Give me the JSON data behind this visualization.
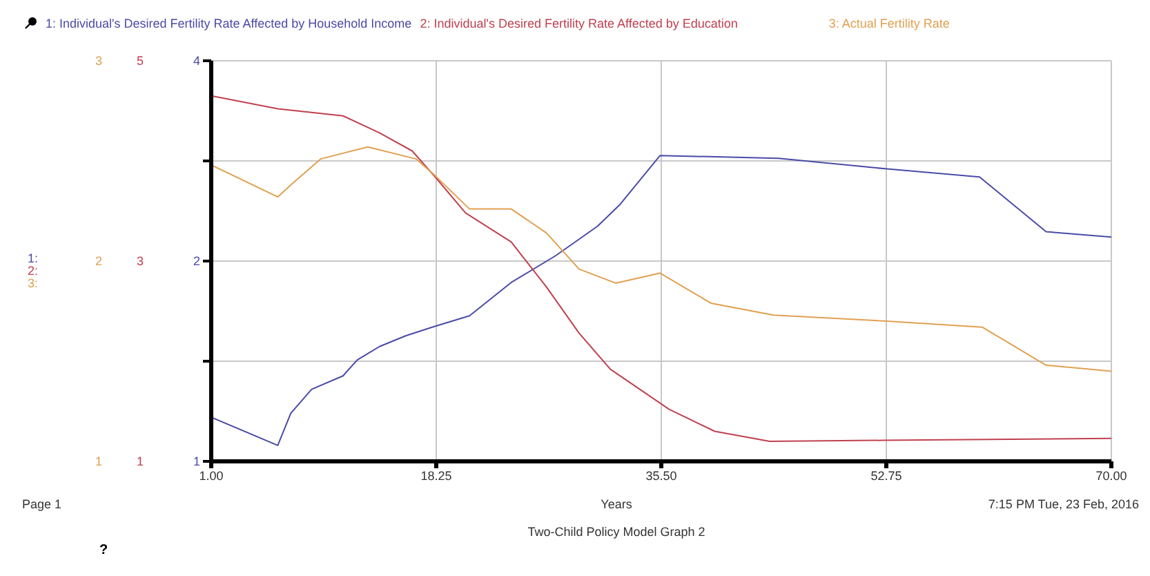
{
  "chart_data": {
    "type": "line",
    "title": "Two-Child Policy Model Graph 2",
    "xlabel": "Years",
    "annotations": [
      "Page 1",
      "7:15 PM  Tue, 23 Feb, 2016",
      "?",
      "1:",
      "2:",
      "3:"
    ],
    "xlim": [
      1,
      70
    ],
    "xticks": [
      {
        "value": 1,
        "label": "1.00"
      },
      {
        "value": 18.25,
        "label": "18.25"
      },
      {
        "value": 35.5,
        "label": "35.50"
      },
      {
        "value": 52.75,
        "label": "52.75"
      },
      {
        "value": 70,
        "label": "70.00"
      }
    ],
    "ylim": [
      1,
      4
    ],
    "yticks": [
      1,
      {
        "value": 1.75,
        "label": null
      },
      {
        "value": 2.5,
        "label": "2"
      },
      {
        "value": 3.25,
        "label": null
      },
      4
    ],
    "y2lim": [
      1,
      5
    ],
    "y2ticks": [
      1,
      3,
      5
    ],
    "y3lim": [
      1,
      3
    ],
    "y3ticks": [
      1,
      2,
      3
    ],
    "grid": true,
    "legend": "top left",
    "marker": "none",
    "line_style": "solid",
    "series": [
      {
        "name": "1: Individual's Desired Fertility Rate Affected by Household Income",
        "color": "#4a4aa8",
        "axis": "y",
        "x": [
          1,
          6.1,
          7.1,
          8.7,
          11.1,
          12.2,
          13.9,
          15.9,
          18.1,
          20.8,
          24,
          27.4,
          30.6,
          32.3,
          35.4,
          44.5,
          52.8,
          59.9,
          65,
          70
        ],
        "values": [
          1.33,
          1.12,
          1.36,
          1.54,
          1.64,
          1.76,
          1.86,
          1.94,
          2.01,
          2.09,
          2.34,
          2.54,
          2.76,
          2.92,
          3.29,
          3.27,
          3.19,
          3.13,
          2.72,
          2.68
        ]
      },
      {
        "name": "2: Individual's Desired Fertility Rate Affected by Education",
        "color": "#c0404f",
        "axis": "y2",
        "x": [
          1,
          6.1,
          11.1,
          13.9,
          16.4,
          18.1,
          20.5,
          24,
          26.7,
          29.2,
          31.6,
          36.1,
          39.6,
          43.8,
          52.5,
          70
        ],
        "values": [
          4.65,
          4.52,
          4.45,
          4.28,
          4.1,
          3.85,
          3.48,
          3.19,
          2.74,
          2.28,
          1.92,
          1.52,
          1.3,
          1.2,
          1.21,
          1.23
        ]
      },
      {
        "name": "3: Actual Fertility Rate",
        "color": "#e0a050",
        "axis": "y3",
        "x": [
          1,
          6.1,
          7.1,
          9.4,
          13,
          16.7,
          18.1,
          20.8,
          24,
          26.7,
          29.2,
          32,
          35.4,
          39.3,
          44.1,
          52.8,
          60.1,
          65,
          70
        ],
        "values": [
          2.48,
          2.32,
          2.38,
          2.51,
          2.57,
          2.51,
          2.43,
          2.26,
          2.26,
          2.14,
          1.96,
          1.89,
          1.94,
          1.79,
          1.73,
          1.7,
          1.67,
          1.48,
          1.45
        ]
      }
    ]
  }
}
